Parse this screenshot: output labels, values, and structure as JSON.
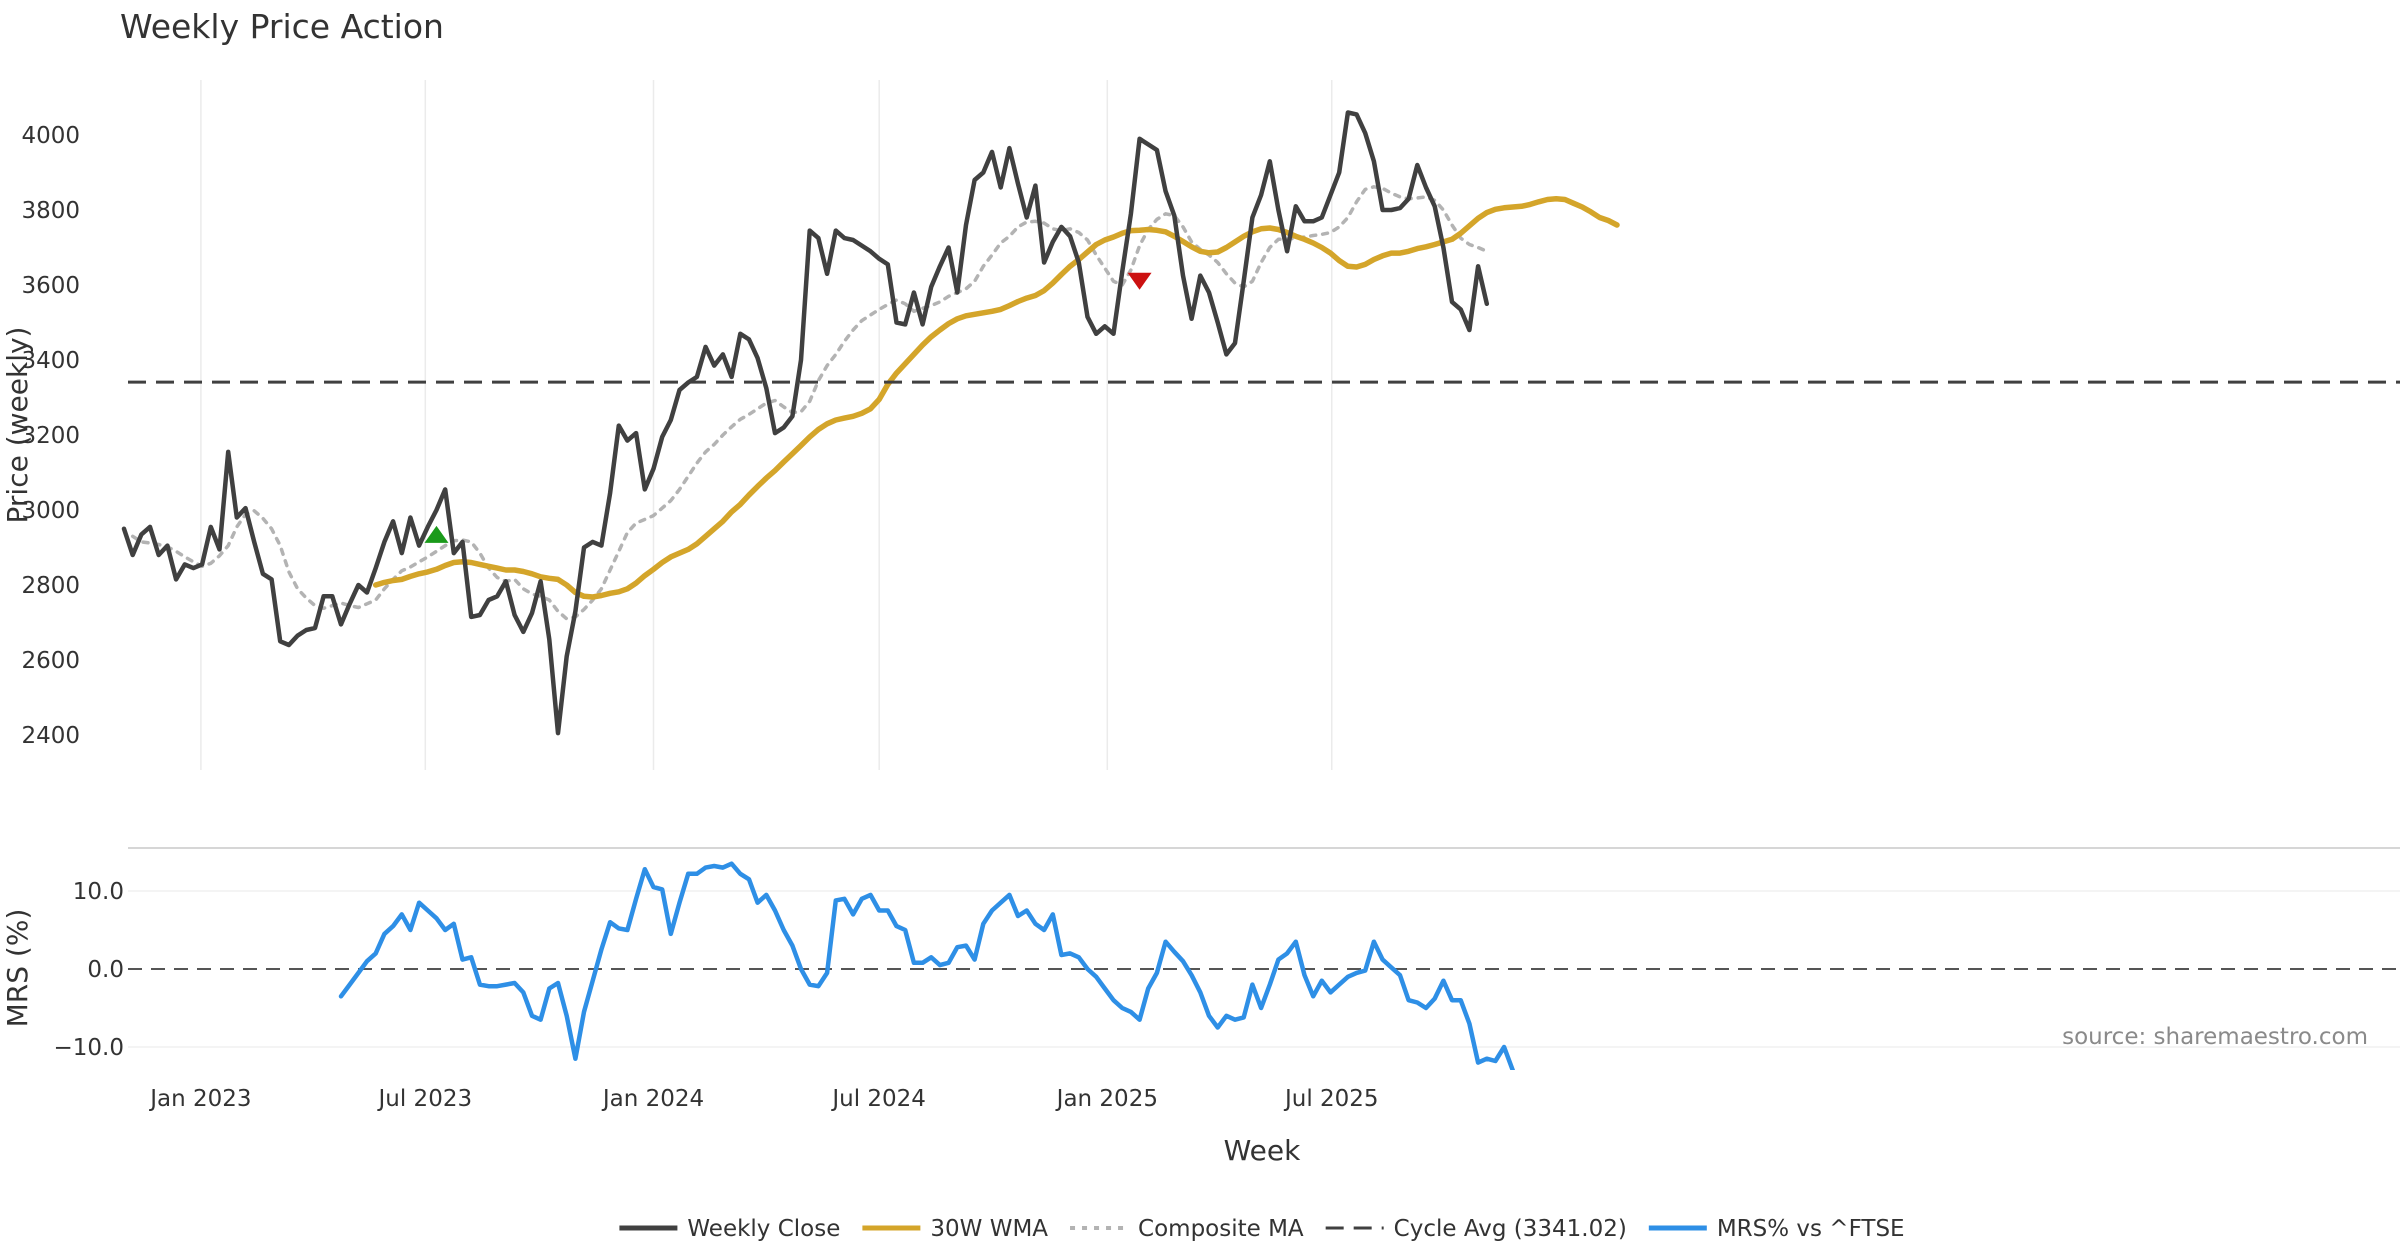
{
  "chart_data": {
    "type": "line",
    "title": "Weekly Price Action",
    "xlabel": "Week",
    "source": "source: sharemaestro.com",
    "x_start": "2022-10-31",
    "x_ticks": [
      {
        "date": "2023-01-01",
        "label": "Jan 2023"
      },
      {
        "date": "2023-07-01",
        "label": "Jul 2023"
      },
      {
        "date": "2024-01-01",
        "label": "Jan 2024"
      },
      {
        "date": "2024-07-01",
        "label": "Jul 2024"
      },
      {
        "date": "2025-01-01",
        "label": "Jan 2025"
      },
      {
        "date": "2025-07-01",
        "label": "Jul 2025"
      }
    ],
    "price_panel": {
      "ylabel": "Price (weekly)",
      "ylim": [
        2310,
        4160
      ],
      "yticks": [
        2400,
        2600,
        2800,
        3000,
        3200,
        3400,
        3600,
        3800,
        4000
      ],
      "grid": "vertical",
      "series": [
        {
          "name": "Weekly Close",
          "color": "#404040",
          "style": "solid",
          "values": [
            2950,
            2880,
            2935,
            2955,
            2880,
            2905,
            2815,
            2855,
            2845,
            2855,
            2955,
            2895,
            3155,
            2980,
            3005,
            2915,
            2830,
            2815,
            2650,
            2640,
            2665,
            2680,
            2685,
            2770,
            2770,
            2695,
            2750,
            2800,
            2780,
            2845,
            2915,
            2970,
            2885,
            2980,
            2905,
            2955,
            3000,
            3055,
            2885,
            2915,
            2715,
            2720,
            2760,
            2770,
            2810,
            2720,
            2675,
            2725,
            2810,
            2655,
            2405,
            2610,
            2730,
            2900,
            2915,
            2905,
            3045,
            3225,
            3185,
            3205,
            3055,
            3110,
            3195,
            3240,
            3320,
            3340,
            3355,
            3435,
            3385,
            3415,
            3355,
            3470,
            3455,
            3405,
            3325,
            3205,
            3220,
            3250,
            3400,
            3745,
            3725,
            3630,
            3745,
            3725,
            3720,
            3705,
            3690,
            3670,
            3655,
            3500,
            3495,
            3580,
            3495,
            3595,
            3650,
            3700,
            3580,
            3760,
            3880,
            3900,
            3955,
            3860,
            3965,
            3870,
            3780,
            3865,
            3660,
            3715,
            3755,
            3730,
            3660,
            3515,
            3470,
            3490,
            3470,
            3635,
            3790,
            3990,
            3975,
            3960,
            3850,
            3785,
            3625,
            3510,
            3625,
            3580,
            3500,
            3415,
            3445,
            3610,
            3780,
            3840,
            3930,
            3800,
            3690,
            3810,
            3770,
            3770,
            3780,
            3840,
            3900,
            4060,
            4055,
            4005,
            3930,
            3800,
            3800,
            3805,
            3830,
            3920,
            3860,
            3810,
            3700,
            3555,
            3535,
            3480,
            3650,
            3550
          ]
        },
        {
          "name": "30W WMA",
          "color": "#d4a52a",
          "style": "solid",
          "start_index": 29,
          "values": [
            2800,
            2807,
            2812,
            2815,
            2823,
            2830,
            2835,
            2842,
            2852,
            2860,
            2862,
            2860,
            2855,
            2850,
            2845,
            2840,
            2840,
            2836,
            2830,
            2822,
            2818,
            2815,
            2800,
            2780,
            2770,
            2768,
            2772,
            2778,
            2782,
            2790,
            2805,
            2825,
            2842,
            2860,
            2875,
            2885,
            2895,
            2910,
            2930,
            2950,
            2970,
            2995,
            3015,
            3040,
            3063,
            3085,
            3105,
            3128,
            3150,
            3172,
            3195,
            3215,
            3230,
            3240,
            3245,
            3250,
            3258,
            3270,
            3295,
            3335,
            3365,
            3390,
            3415,
            3440,
            3462,
            3480,
            3497,
            3510,
            3518,
            3522,
            3526,
            3530,
            3535,
            3545,
            3556,
            3565,
            3572,
            3585,
            3605,
            3628,
            3650,
            3668,
            3688,
            3708,
            3720,
            3728,
            3738,
            3745,
            3746,
            3748,
            3746,
            3742,
            3730,
            3716,
            3702,
            3690,
            3686,
            3688,
            3700,
            3715,
            3730,
            3742,
            3750,
            3752,
            3748,
            3740,
            3730,
            3722,
            3712,
            3700,
            3685,
            3665,
            3650,
            3648,
            3655,
            3668,
            3678,
            3685,
            3685,
            3690,
            3697,
            3702,
            3708,
            3715,
            3722,
            3738,
            3758,
            3778,
            3793,
            3802,
            3806,
            3808,
            3810,
            3815,
            3822,
            3828,
            3830,
            3828,
            3818,
            3808,
            3795,
            3780,
            3772,
            3760
          ]
        },
        {
          "name": "Composite MA",
          "color": "#b3b3b3",
          "style": "dotted",
          "start_index": 1,
          "values": [
            2930,
            2915,
            2912,
            2908,
            2902,
            2890,
            2875,
            2862,
            2850,
            2858,
            2878,
            2905,
            2955,
            2988,
            2998,
            2978,
            2950,
            2905,
            2835,
            2790,
            2765,
            2745,
            2738,
            2745,
            2752,
            2745,
            2740,
            2750,
            2760,
            2790,
            2815,
            2838,
            2848,
            2862,
            2875,
            2890,
            2905,
            2918,
            2920,
            2915,
            2885,
            2845,
            2820,
            2810,
            2815,
            2790,
            2776,
            2770,
            2760,
            2730,
            2710,
            2715,
            2735,
            2760,
            2790,
            2840,
            2890,
            2940,
            2965,
            2975,
            2985,
            3005,
            3025,
            3055,
            3090,
            3125,
            3155,
            3175,
            3200,
            3222,
            3242,
            3255,
            3270,
            3285,
            3292,
            3275,
            3260,
            3262,
            3290,
            3345,
            3385,
            3415,
            3450,
            3480,
            3505,
            3520,
            3535,
            3548,
            3560,
            3550,
            3530,
            3538,
            3545,
            3555,
            3570,
            3580,
            3590,
            3610,
            3650,
            3680,
            3712,
            3730,
            3755,
            3768,
            3770,
            3765,
            3750,
            3745,
            3750,
            3740,
            3720,
            3680,
            3645,
            3610,
            3600,
            3640,
            3705,
            3748,
            3775,
            3790,
            3785,
            3755,
            3715,
            3695,
            3680,
            3660,
            3630,
            3605,
            3595,
            3610,
            3660,
            3700,
            3722,
            3722,
            3725,
            3728,
            3732,
            3735,
            3740,
            3755,
            3780,
            3822,
            3855,
            3862,
            3858,
            3845,
            3835,
            3830,
            3832,
            3835,
            3826,
            3800,
            3760,
            3725,
            3708,
            3700,
            3690
          ]
        },
        {
          "name": "Cycle Avg (3341.02)",
          "color": "#404040",
          "style": "dashed",
          "constant": 3341.02
        }
      ],
      "markers": [
        {
          "type": "buy",
          "shape": "triangle-up",
          "color": "#1a9a1a",
          "week_index": 36,
          "value": 2935
        },
        {
          "type": "sell",
          "shape": "triangle-down",
          "color": "#cc1111",
          "week_index": 117,
          "value": 3610
        }
      ]
    },
    "mrs_panel": {
      "ylabel": "MRS (%)",
      "ylim": [
        -14,
        14
      ],
      "yticks": [
        10.0,
        0.0,
        -10.0
      ],
      "ytick_labels": [
        "10.0",
        "0.0",
        "−10.0"
      ],
      "baseline": 0,
      "series": [
        {
          "name": "MRS% vs ^FTSE",
          "color": "#2e8fe6",
          "style": "solid",
          "start_index": 25,
          "values": [
            -3.5,
            -2,
            -0.5,
            1,
            2,
            4.5,
            5.5,
            7,
            5,
            8.5,
            7.5,
            6.5,
            5,
            5.8,
            1.2,
            1.5,
            -2,
            -2.2,
            -2.2,
            -2,
            -1.8,
            -3,
            -6,
            -6.5,
            -2.5,
            -1.8,
            -6,
            -11.5,
            -5.5,
            -1.5,
            2.5,
            6,
            5.2,
            5,
            9,
            12.8,
            10.5,
            10.2,
            4.5,
            8.5,
            12.2,
            12.2,
            13,
            13.2,
            13,
            13.5,
            12.2,
            11.5,
            8.5,
            9.5,
            7.5,
            5,
            3,
            0,
            -2,
            -2.2,
            -0.5,
            8.8,
            9,
            7,
            9,
            9.5,
            7.5,
            7.5,
            5.5,
            5,
            0.8,
            0.8,
            1.5,
            0.5,
            0.8,
            2.8,
            3,
            1.2,
            5.8,
            7.5,
            8.5,
            9.5,
            6.8,
            7.5,
            5.8,
            5,
            7,
            1.8,
            2,
            1.5,
            0,
            -1,
            -2.5,
            -4,
            -5,
            -5.5,
            -6.5,
            -2.5,
            -0.5,
            3.5,
            2.2,
            1,
            -0.8,
            -3,
            -6,
            -7.5,
            -6,
            -6.5,
            -6.2,
            -2,
            -5,
            -2,
            1.2,
            2,
            3.5,
            -0.8,
            -3.5,
            -1.5,
            -3,
            -2,
            -1,
            -0.5,
            -0.2,
            3.5,
            1.2,
            0.2,
            -0.8,
            -4,
            -4.3,
            -5,
            -3.8,
            -1.5,
            -4,
            -4,
            -7,
            -12,
            -11.5,
            -11.8,
            -10,
            -13
          ]
        }
      ]
    }
  },
  "legend": [
    {
      "label": "Weekly Close",
      "color": "#404040",
      "style": "solid"
    },
    {
      "label": "30W WMA",
      "color": "#d4a52a",
      "style": "solid"
    },
    {
      "label": "Composite MA",
      "color": "#b3b3b3",
      "style": "dotted"
    },
    {
      "label": "Cycle Avg (3341.02)",
      "color": "#404040",
      "style": "dashed"
    },
    {
      "label": "MRS% vs ^FTSE",
      "color": "#2e8fe6",
      "style": "solid"
    }
  ]
}
